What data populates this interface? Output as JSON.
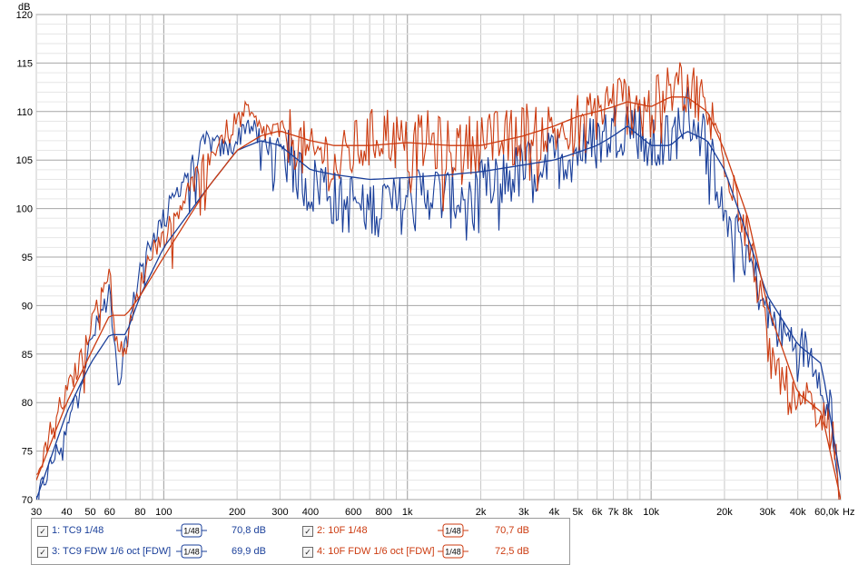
{
  "axes": {
    "y_unit": "dB",
    "x_unit": "Hz",
    "y_ticks": [
      "120",
      "115",
      "110",
      "105",
      "100",
      "95",
      "90",
      "85",
      "80",
      "75",
      "70"
    ],
    "x_ticks": [
      "30",
      "40",
      "50",
      "60",
      "80",
      "100",
      "200",
      "300",
      "400",
      "600",
      "800",
      "1k",
      "2k",
      "3k",
      "4k",
      "5k",
      "6k",
      "7k",
      "8k",
      "10k",
      "20k",
      "30k",
      "40k",
      "60,0k"
    ]
  },
  "legend": {
    "items": [
      {
        "check": "✓",
        "name": "1: TC9 1/48",
        "smoothing": "1/48",
        "value": "70,8 dB",
        "color": "#1a3f9a"
      },
      {
        "check": "✓",
        "name": "2: 10F 1/48",
        "smoothing": "1/48",
        "value": "70,7 dB",
        "color": "#cc3b10"
      },
      {
        "check": "✓",
        "name": "3: TC9 FDW 1/6 oct [FDW]",
        "smoothing": "1/48",
        "value": "69,9 dB",
        "color": "#1a3f9a"
      },
      {
        "check": "✓",
        "name": "4: 10F FDW 1/6 oct [FDW]",
        "smoothing": "1/48",
        "value": "72,5 dB",
        "color": "#cc3b10"
      }
    ]
  },
  "chart_data": {
    "type": "line",
    "xlabel": "Hz",
    "ylabel": "dB",
    "xscale": "log",
    "xlim": [
      30,
      60000
    ],
    "ylim": [
      70,
      120
    ],
    "grid": true,
    "legend": "bottom-left",
    "colors": {
      "tc9": "#1a3f9a",
      "10f": "#cc3b10"
    },
    "series": [
      {
        "name": "1: TC9 1/48",
        "color": "#1a3f9a",
        "detail": "raw",
        "x": [
          30,
          35,
          40,
          45,
          50,
          55,
          60,
          62,
          65,
          70,
          80,
          90,
          100,
          120,
          150,
          180,
          200,
          220,
          250,
          300,
          350,
          400,
          450,
          500,
          550,
          600,
          700,
          800,
          900,
          1000,
          1200,
          1500,
          2000,
          2500,
          3000,
          4000,
          5000,
          6000,
          7000,
          8000,
          9000,
          10000,
          12000,
          14000,
          16000,
          20000,
          25000,
          30000,
          35000,
          40000,
          45000,
          50000,
          55000,
          60000
        ],
        "y": [
          70,
          74,
          77,
          82,
          86,
          89,
          92,
          88,
          81,
          86,
          94,
          97,
          99,
          103,
          107,
          106,
          107,
          109,
          107,
          106,
          104,
          102,
          103,
          101,
          100,
          101,
          100,
          101,
          100,
          101,
          102,
          101,
          102,
          103,
          104,
          105,
          106,
          107,
          108,
          109,
          108,
          106,
          107,
          110,
          108,
          101,
          95,
          89,
          87,
          86,
          85,
          83,
          79,
          70
        ]
      },
      {
        "name": "2: 10F 1/48",
        "color": "#cc3b10",
        "detail": "raw",
        "x": [
          30,
          35,
          40,
          45,
          50,
          55,
          60,
          62,
          65,
          70,
          80,
          90,
          100,
          120,
          150,
          180,
          200,
          220,
          250,
          300,
          350,
          400,
          450,
          500,
          550,
          600,
          700,
          800,
          900,
          1000,
          1200,
          1500,
          2000,
          2500,
          3000,
          4000,
          5000,
          6000,
          7000,
          8000,
          9000,
          10000,
          12000,
          14000,
          16000,
          20000,
          25000,
          30000,
          35000,
          40000,
          45000,
          50000,
          55000,
          60000
        ],
        "y": [
          72,
          78,
          81,
          84,
          88,
          91,
          94,
          89,
          85,
          86,
          92,
          96,
          97,
          101,
          105,
          108,
          109,
          110,
          108,
          108,
          107,
          105,
          106,
          104,
          105,
          106,
          107,
          108,
          107,
          106,
          107,
          106,
          107,
          107,
          108,
          108,
          109,
          110,
          111,
          111,
          110,
          110,
          112,
          113,
          111,
          106,
          98,
          86,
          82,
          79,
          80,
          80,
          77,
          70
        ]
      },
      {
        "name": "3: TC9 FDW 1/6 oct [FDW]",
        "color": "#1a3f9a",
        "detail": "smoothed",
        "x": [
          30,
          40,
          50,
          60,
          70,
          80,
          100,
          150,
          200,
          250,
          300,
          400,
          500,
          700,
          1000,
          1500,
          2000,
          3000,
          4000,
          5000,
          6000,
          7000,
          8000,
          10000,
          12000,
          14000,
          17000,
          20000,
          25000,
          30000,
          40000,
          50000,
          60000
        ],
        "y": [
          70,
          79,
          84,
          87,
          87,
          91,
          96,
          102,
          106,
          107,
          106.5,
          104,
          103.5,
          103,
          103.2,
          103.5,
          103.8,
          104.5,
          105,
          105.8,
          106.5,
          107.5,
          108.5,
          106.5,
          106.5,
          108,
          107,
          104,
          97,
          91,
          86,
          84,
          72
        ]
      },
      {
        "name": "4: 10F FDW 1/6 oct [FDW]",
        "color": "#cc3b10",
        "detail": "smoothed",
        "x": [
          30,
          40,
          50,
          60,
          70,
          80,
          100,
          150,
          200,
          250,
          300,
          400,
          500,
          700,
          1000,
          1500,
          2000,
          3000,
          4000,
          5000,
          6000,
          7000,
          8000,
          10000,
          12000,
          14000,
          17000,
          20000,
          25000,
          30000,
          40000,
          50000,
          60000
        ],
        "y": [
          72,
          80,
          85,
          89,
          89,
          91,
          95,
          102,
          106,
          107.5,
          108,
          107,
          106.5,
          106.5,
          106.8,
          106.5,
          106.5,
          107.5,
          108.5,
          109.5,
          110,
          110.5,
          111,
          110.5,
          111.5,
          111.5,
          110,
          106,
          99,
          90,
          81,
          79,
          70
        ]
      }
    ]
  }
}
